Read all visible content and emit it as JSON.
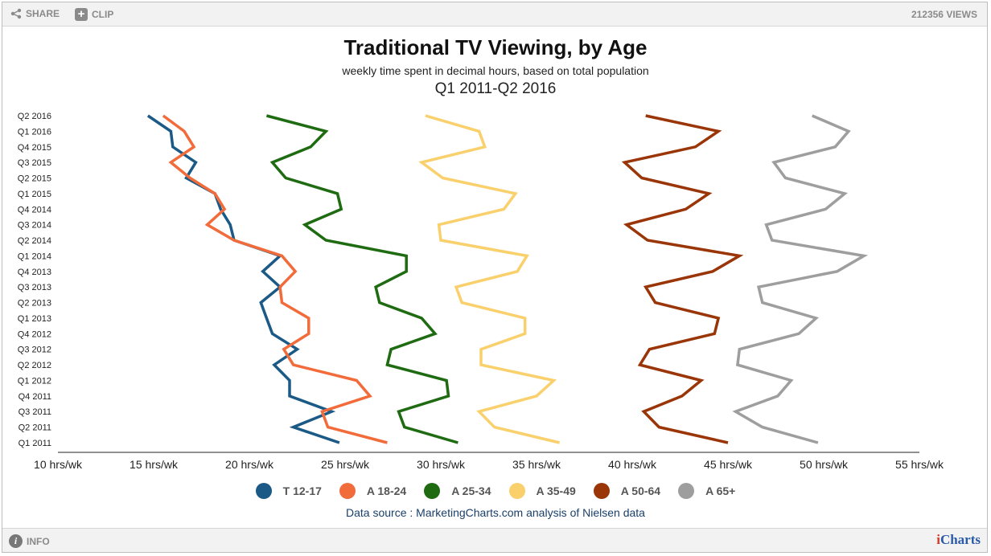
{
  "toolbar": {
    "share_label": "SHARE",
    "clip_label": "CLIP",
    "views_label": "212356 VIEWS",
    "info_label": "INFO",
    "brand_i": "i",
    "brand_rest": "Charts"
  },
  "colors": {
    "T 12-17": "#1b5a86",
    "A 18-24": "#f26b3a",
    "A 25-34": "#1e6b12",
    "A 35-49": "#f9d06b",
    "A 50-64": "#9a3507",
    "A 65+": "#9e9e9e"
  },
  "chart_data": {
    "type": "line",
    "orientation": "horizontal",
    "title": "Traditional TV Viewing, by Age",
    "subtitle": "weekly time spent in decimal hours, based on total population",
    "subtitle2": "Q1 2011-Q2 2016",
    "source": "Data source : MarketingCharts.com analysis of Nielsen data",
    "categories": [
      "Q1 2011",
      "Q2 2011",
      "Q3 2011",
      "Q4 2011",
      "Q1 2012",
      "Q2 2012",
      "Q3 2012",
      "Q4 2012",
      "Q1 2013",
      "Q2 2013",
      "Q3 2013",
      "Q4 2013",
      "Q1 2014",
      "Q2 2014",
      "Q3 2014",
      "Q4 2014",
      "Q1 2015",
      "Q2 2015",
      "Q3 2015",
      "Q4 2015",
      "Q1 2016",
      "Q2 2016"
    ],
    "xlim": [
      10,
      55
    ],
    "xticks": [
      10,
      15,
      20,
      25,
      30,
      35,
      40,
      45,
      50,
      55
    ],
    "xtick_labels": [
      "10 hrs/wk",
      "15 hrs/wk",
      "20 hrs/wk",
      "25 hrs/wk",
      "30 hrs/wk",
      "35 hrs/wk",
      "40 hrs/wk",
      "45 hrs/wk",
      "50 hrs/wk",
      "55 hrs/wk"
    ],
    "legend_position": "bottom",
    "grid": false,
    "series": [
      {
        "name": "T 12-17",
        "values": [
          24.7,
          22.3,
          24.3,
          22.1,
          22.1,
          21.3,
          22.5,
          21.2,
          20.9,
          20.6,
          21.6,
          20.7,
          21.6,
          19.2,
          19.0,
          18.5,
          18.2,
          16.7,
          17.2,
          16.0,
          15.9,
          14.7
        ]
      },
      {
        "name": "A 18-24",
        "values": [
          27.2,
          24.1,
          23.8,
          26.3,
          25.6,
          22.3,
          21.8,
          23.1,
          23.1,
          21.7,
          21.6,
          22.4,
          21.7,
          19.2,
          17.8,
          18.7,
          18.2,
          16.9,
          15.9,
          17.1,
          16.6,
          15.5
        ]
      },
      {
        "name": "A 25-34",
        "values": [
          30.9,
          28.1,
          27.8,
          30.4,
          30.3,
          27.2,
          27.4,
          29.7,
          29.0,
          26.8,
          26.6,
          28.2,
          28.2,
          24.0,
          22.9,
          24.8,
          24.6,
          21.9,
          21.2,
          23.2,
          24.0,
          20.9
        ]
      },
      {
        "name": "A 35-49",
        "values": [
          36.2,
          32.8,
          32.0,
          35.0,
          35.9,
          32.1,
          32.1,
          34.4,
          34.4,
          31.1,
          30.8,
          34.0,
          34.5,
          30.0,
          29.9,
          33.3,
          33.9,
          30.1,
          29.0,
          32.3,
          32.0,
          29.2
        ]
      },
      {
        "name": "A 50-64",
        "values": [
          45.0,
          41.4,
          40.6,
          42.6,
          43.6,
          40.4,
          40.9,
          44.3,
          44.5,
          41.2,
          40.7,
          44.2,
          45.6,
          40.8,
          39.7,
          42.8,
          44.0,
          40.5,
          39.6,
          43.3,
          44.5,
          40.7
        ]
      },
      {
        "name": "A 65+",
        "values": [
          49.7,
          46.8,
          45.4,
          47.6,
          48.3,
          45.5,
          45.6,
          48.7,
          49.6,
          46.8,
          46.6,
          50.7,
          52.1,
          47.3,
          47.0,
          50.1,
          51.1,
          48.0,
          47.4,
          50.6,
          51.3,
          49.4
        ]
      }
    ]
  }
}
